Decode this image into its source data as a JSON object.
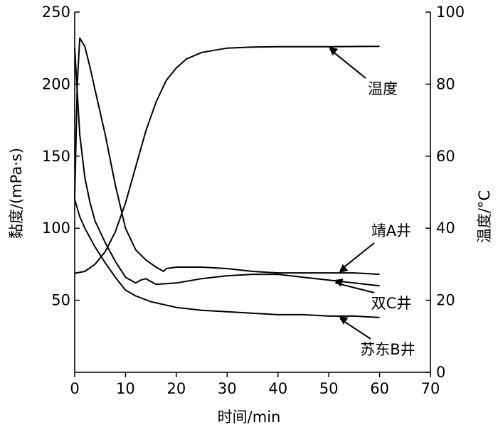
{
  "chart_data": {
    "type": "line",
    "xlabel": "时间/min",
    "ylabel": "黏度/(mPa·s)",
    "y2label": "温度/°C",
    "xlim": [
      0,
      70
    ],
    "ylim": [
      0,
      250
    ],
    "y2lim": [
      0,
      100
    ],
    "xticks": [
      0,
      10,
      20,
      30,
      40,
      50,
      60,
      70
    ],
    "yticks": [
      50,
      100,
      150,
      200,
      250
    ],
    "y2ticks": [
      0,
      20,
      40,
      60,
      80,
      100
    ],
    "grid": false,
    "series": [
      {
        "name": "温度",
        "axis": "right",
        "x": [
          0,
          2,
          4,
          6,
          8,
          10,
          12,
          14,
          16,
          18,
          20,
          22,
          25,
          30,
          35,
          40,
          50,
          60
        ],
        "y": [
          27.5,
          28,
          30,
          33.5,
          39,
          47,
          57,
          67,
          75,
          81,
          84.5,
          87,
          88.8,
          90,
          90.3,
          90.4,
          90.4,
          90.5
        ]
      },
      {
        "name": "靖A井",
        "axis": "left",
        "x": [
          0,
          0.5,
          1,
          2,
          3,
          4,
          6,
          8,
          10,
          12,
          14,
          16,
          17.5,
          18,
          20,
          25,
          30,
          35,
          40,
          45,
          50,
          55,
          60
        ],
        "y": [
          120,
          200,
          232,
          226,
          212,
          196,
          165,
          130,
          100,
          85,
          78,
          73,
          70,
          72,
          73,
          73,
          72,
          70,
          69,
          69,
          69,
          69,
          68
        ]
      },
      {
        "name": "双C井",
        "axis": "left",
        "x": [
          0,
          1,
          2,
          3,
          4,
          6,
          8,
          10,
          12,
          13,
          14,
          16,
          20,
          25,
          30,
          35,
          40,
          45,
          50,
          55,
          60
        ],
        "y": [
          225,
          165,
          135,
          118,
          105,
          90,
          77,
          66,
          62,
          64,
          65,
          61,
          62,
          65,
          67,
          68,
          68,
          66,
          64,
          62,
          60
        ]
      },
      {
        "name": "苏东B井",
        "axis": "left",
        "x": [
          0,
          1,
          2,
          4,
          6,
          8,
          10,
          12,
          15,
          20,
          25,
          30,
          35,
          40,
          45,
          50,
          55,
          60
        ],
        "y": [
          120,
          108,
          100,
          87,
          76,
          66,
          57,
          53,
          49,
          45,
          43,
          42,
          41,
          40,
          40,
          39,
          39,
          38
        ]
      }
    ],
    "annotations": [
      {
        "text": "温度",
        "series": "温度",
        "at": [
          50,
          90.4
        ]
      },
      {
        "text": "靖A井",
        "series": "靖A井",
        "at": [
          52,
          69
        ]
      },
      {
        "text": "双C井",
        "series": "双C井",
        "at": [
          51,
          64
        ]
      },
      {
        "text": "苏东B井",
        "series": "苏东B井",
        "at": [
          52,
          39
        ]
      }
    ]
  }
}
